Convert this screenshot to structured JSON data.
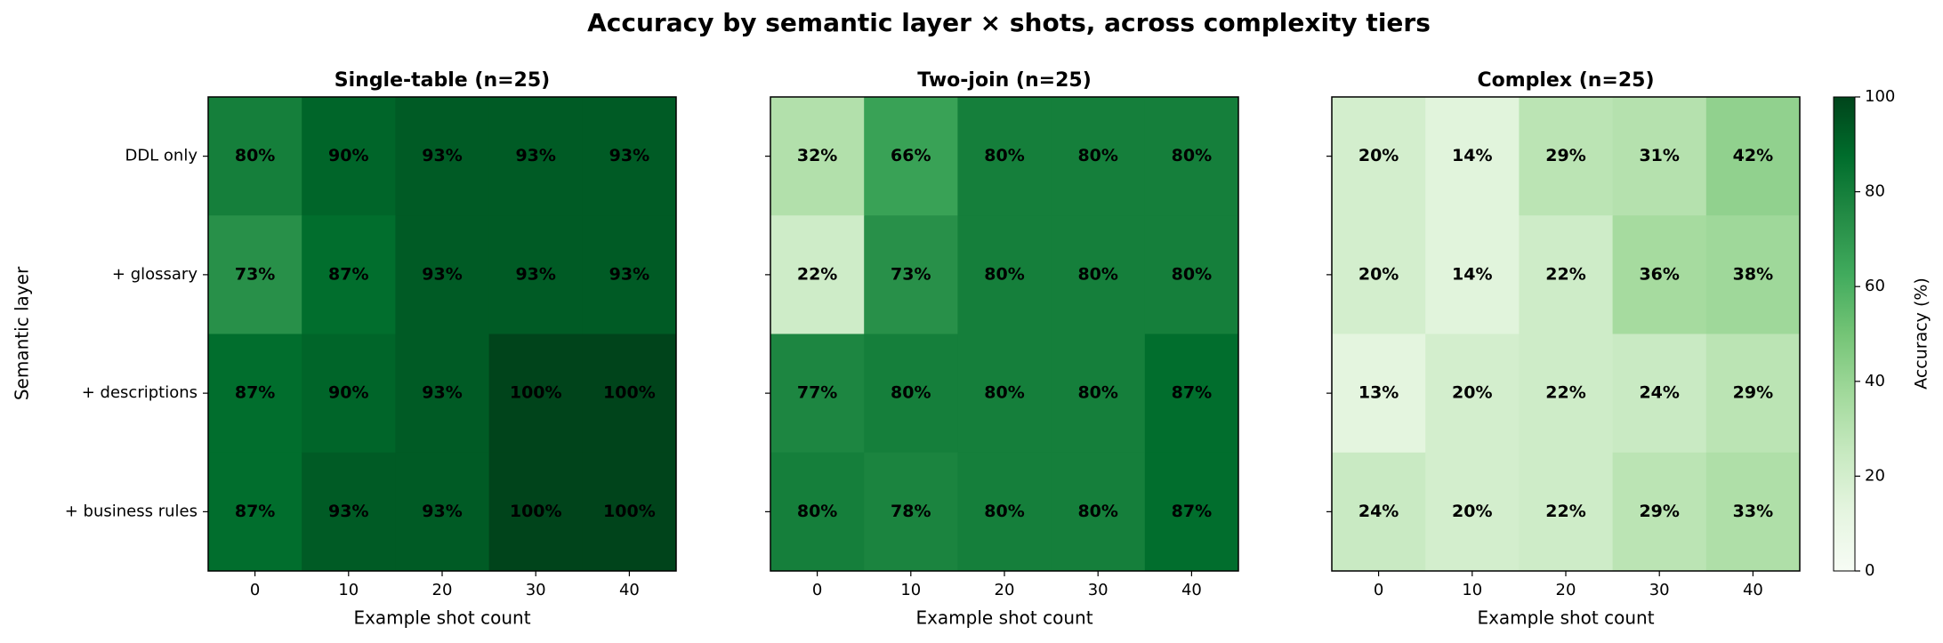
{
  "chart_data": {
    "type": "heatmap",
    "title": "Accuracy by semantic layer × shots, across complexity tiers",
    "ylabel": "Semantic layer",
    "rows": [
      "DDL only",
      "+ glossary",
      "+ descriptions",
      "+ business rules"
    ],
    "x": [
      0,
      10,
      20,
      30,
      40
    ],
    "colormap": [
      "#f7fcf5",
      "#e5f5e0",
      "#c7e9c0",
      "#a1d99b",
      "#74c476",
      "#41ab5d",
      "#238b45",
      "#006d2c",
      "#00441b"
    ],
    "colorbar": {
      "label": "Accuracy (%)",
      "lim": [
        0,
        100
      ],
      "ticks": [
        0,
        20,
        40,
        60,
        80,
        100
      ]
    },
    "panels": [
      {
        "title": "Single-table (n=25)",
        "xlabel": "Example shot count",
        "values": [
          [
            80,
            90,
            93,
            93,
            93
          ],
          [
            73,
            87,
            93,
            93,
            93
          ],
          [
            87,
            90,
            93,
            100,
            100
          ],
          [
            87,
            93,
            93,
            100,
            100
          ]
        ],
        "value_labels": [
          [
            "80%",
            "90%",
            "93%",
            "93%",
            "93%"
          ],
          [
            "73%",
            "87%",
            "93%",
            "93%",
            "93%"
          ],
          [
            "87%",
            "90%",
            "93%",
            "100%",
            "100%"
          ],
          [
            "87%",
            "93%",
            "93%",
            "100%",
            "100%"
          ]
        ]
      },
      {
        "title": "Two-join (n=25)",
        "xlabel": "Example shot count",
        "values": [
          [
            32,
            66,
            80,
            80,
            80
          ],
          [
            22,
            73,
            80,
            80,
            80
          ],
          [
            77,
            80,
            80,
            80,
            87
          ],
          [
            80,
            78,
            80,
            80,
            87
          ]
        ],
        "value_labels": [
          [
            "32%",
            "66%",
            "80%",
            "80%",
            "80%"
          ],
          [
            "22%",
            "73%",
            "80%",
            "80%",
            "80%"
          ],
          [
            "77%",
            "80%",
            "80%",
            "80%",
            "87%"
          ],
          [
            "80%",
            "78%",
            "80%",
            "80%",
            "87%"
          ]
        ]
      },
      {
        "title": "Complex (n=25)",
        "xlabel": "Example shot count",
        "values": [
          [
            20,
            14,
            29,
            31,
            42
          ],
          [
            20,
            14,
            22,
            36,
            38
          ],
          [
            13,
            20,
            22,
            24,
            29
          ],
          [
            24,
            20,
            22,
            29,
            33
          ]
        ],
        "value_labels": [
          [
            "20%",
            "14%",
            "29%",
            "31%",
            "42%"
          ],
          [
            "20%",
            "14%",
            "22%",
            "36%",
            "38%"
          ],
          [
            "13%",
            "20%",
            "22%",
            "24%",
            "29%"
          ],
          [
            "24%",
            "20%",
            "22%",
            "29%",
            "33%"
          ]
        ]
      }
    ]
  }
}
